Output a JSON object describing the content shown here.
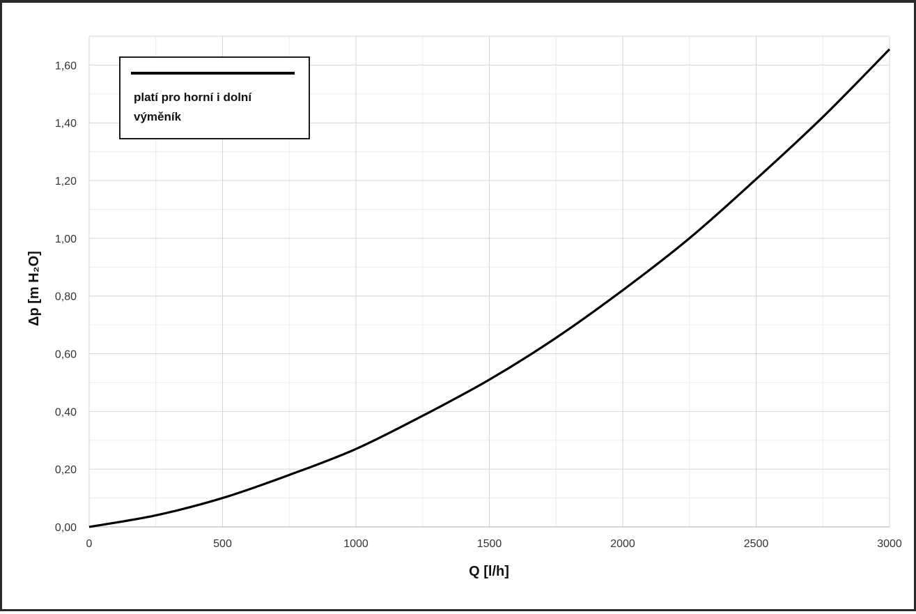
{
  "chart_data": {
    "type": "line",
    "xlabel": "Q [l/h]",
    "ylabel": "Δp [m H₂O]",
    "xlim": [
      0,
      3000
    ],
    "ylim": [
      0,
      1.7
    ],
    "x_ticks": [
      "0",
      "500",
      "1000",
      "1500",
      "2000",
      "2500",
      "3000"
    ],
    "y_ticks": [
      "0,00",
      "0,20",
      "0,40",
      "0,60",
      "0,80",
      "1,00",
      "1,20",
      "1,40",
      "1,60"
    ],
    "grid": true,
    "legend_position": "top-left",
    "series": [
      {
        "name": "platí pro horní i dolní výměník",
        "color": "#000000",
        "x": [
          0,
          250,
          500,
          750,
          1000,
          1250,
          1500,
          1750,
          2000,
          2250,
          2500,
          2750,
          3000
        ],
        "y": [
          0.0,
          0.04,
          0.1,
          0.18,
          0.27,
          0.385,
          0.51,
          0.655,
          0.82,
          1.0,
          1.205,
          1.42,
          1.655
        ]
      }
    ]
  }
}
